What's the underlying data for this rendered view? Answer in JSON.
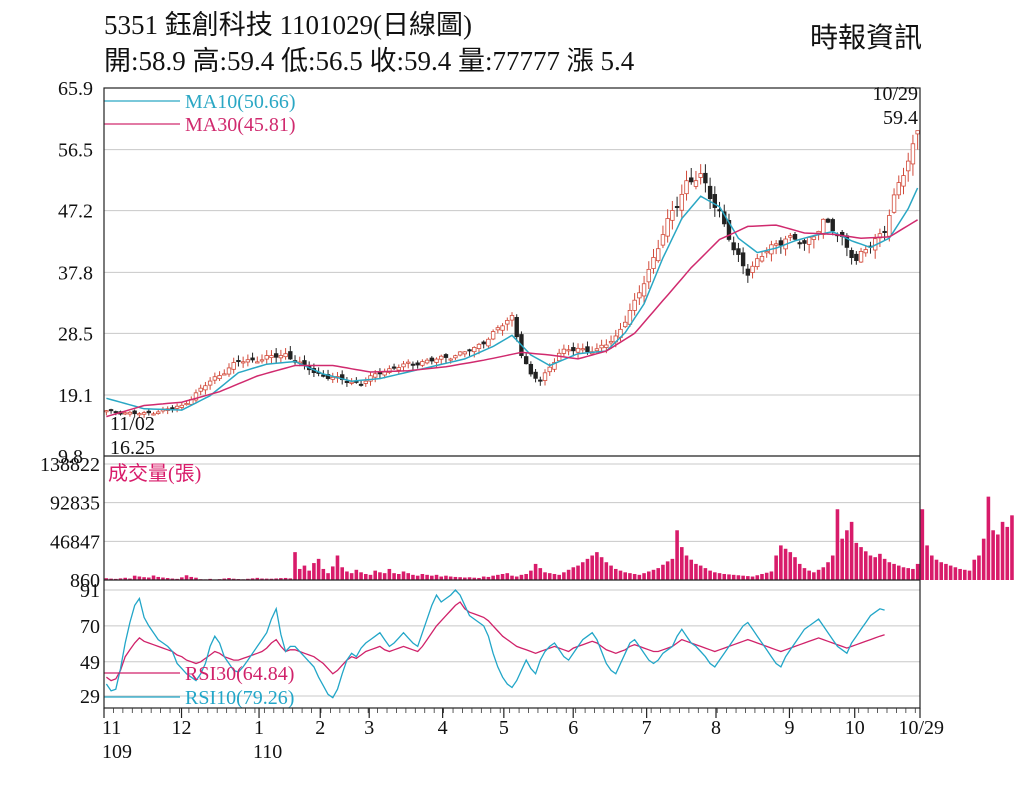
{
  "header": {
    "title": "5351  鈺創科技 1101029(日線圖)",
    "ohlc": "開:58.9 高:59.4 低:56.5 收:59.4 量:77777 漲 5.4",
    "source": "時報資訊"
  },
  "colors": {
    "ma10": "#2aa7c4",
    "ma30": "#d02a6e",
    "up_candle": "#d24a3a",
    "down_candle": "#222222",
    "volume": "#d81b6a",
    "rsi30": "#d0226a",
    "rsi10": "#22a6c8",
    "grid": "#c8c8c8"
  },
  "chart_data": [
    {
      "type": "candlestick",
      "name": "price",
      "ylim": [
        9.8,
        65.9
      ],
      "y_ticks": [
        "65.9",
        "56.5",
        "47.2",
        "37.8",
        "28.5",
        "19.1",
        "9.8"
      ],
      "legend": [
        "MA10(50.66)",
        "MA30(45.81)"
      ],
      "start_label": {
        "date": "11/02",
        "value": "16.25"
      },
      "end_label": {
        "date": "10/29",
        "value": "59.4"
      },
      "last_candle": {
        "open": 58.9,
        "high": 59.4,
        "low": 56.5,
        "close": 59.4
      },
      "price_path": [
        [
          0,
          16.6
        ],
        [
          8,
          16.2
        ],
        [
          16,
          17.4
        ],
        [
          22,
          21.2
        ],
        [
          28,
          24.2
        ],
        [
          33,
          24.6
        ],
        [
          38,
          25.3
        ],
        [
          42,
          23.4
        ],
        [
          46,
          22.0
        ],
        [
          50,
          21.4
        ],
        [
          54,
          20.8
        ],
        [
          58,
          22.6
        ],
        [
          64,
          23.8
        ],
        [
          70,
          24.5
        ],
        [
          74,
          25.2
        ],
        [
          78,
          26.1
        ],
        [
          82,
          28.5
        ],
        [
          86,
          31.0
        ],
        [
          88,
          25.5
        ],
        [
          90,
          22.0
        ],
        [
          92,
          21.3
        ],
        [
          96,
          25.5
        ],
        [
          100,
          26.2
        ],
        [
          104,
          25.8
        ],
        [
          108,
          28.0
        ],
        [
          112,
          33.0
        ],
        [
          116,
          40.0
        ],
        [
          120,
          47.0
        ],
        [
          123,
          51.5
        ],
        [
          126,
          52.2
        ],
        [
          130,
          47.0
        ],
        [
          133,
          41.0
        ],
        [
          136,
          38.0
        ],
        [
          140,
          41.0
        ],
        [
          144,
          43.2
        ],
        [
          148,
          42.0
        ],
        [
          152,
          45.5
        ],
        [
          156,
          43.0
        ],
        [
          159,
          39.5
        ],
        [
          162,
          42.0
        ],
        [
          165,
          44.5
        ],
        [
          168,
          51.0
        ],
        [
          170,
          55.0
        ],
        [
          172,
          59.4
        ]
      ],
      "ma10_path": [
        [
          0,
          18.6
        ],
        [
          8,
          17.0
        ],
        [
          16,
          16.8
        ],
        [
          22,
          19.0
        ],
        [
          28,
          22.5
        ],
        [
          34,
          23.8
        ],
        [
          40,
          24.2
        ],
        [
          46,
          22.3
        ],
        [
          52,
          21.2
        ],
        [
          58,
          21.6
        ],
        [
          64,
          22.6
        ],
        [
          70,
          23.6
        ],
        [
          76,
          24.6
        ],
        [
          82,
          26.5
        ],
        [
          86,
          28.2
        ],
        [
          90,
          25.2
        ],
        [
          94,
          23.6
        ],
        [
          100,
          25.4
        ],
        [
          106,
          25.8
        ],
        [
          110,
          28.6
        ],
        [
          114,
          33.0
        ],
        [
          118,
          40.0
        ],
        [
          122,
          46.0
        ],
        [
          126,
          49.4
        ],
        [
          130,
          47.8
        ],
        [
          134,
          43.0
        ],
        [
          138,
          40.8
        ],
        [
          142,
          41.5
        ],
        [
          146,
          42.6
        ],
        [
          150,
          43.4
        ],
        [
          154,
          44.0
        ],
        [
          158,
          42.6
        ],
        [
          162,
          41.6
        ],
        [
          166,
          43.0
        ],
        [
          170,
          47.5
        ],
        [
          172,
          50.66
        ]
      ],
      "ma30_path": [
        [
          0,
          15.8
        ],
        [
          8,
          17.5
        ],
        [
          16,
          18.0
        ],
        [
          24,
          19.6
        ],
        [
          32,
          22.0
        ],
        [
          40,
          23.6
        ],
        [
          48,
          23.6
        ],
        [
          56,
          22.6
        ],
        [
          64,
          22.8
        ],
        [
          72,
          23.4
        ],
        [
          80,
          24.4
        ],
        [
          88,
          25.6
        ],
        [
          94,
          25.2
        ],
        [
          100,
          24.6
        ],
        [
          106,
          25.8
        ],
        [
          112,
          28.5
        ],
        [
          118,
          33.5
        ],
        [
          124,
          38.5
        ],
        [
          130,
          42.8
        ],
        [
          136,
          44.8
        ],
        [
          142,
          45.0
        ],
        [
          148,
          43.8
        ],
        [
          154,
          43.6
        ],
        [
          160,
          43.0
        ],
        [
          166,
          43.2
        ],
        [
          172,
          45.81
        ]
      ]
    },
    {
      "type": "bar",
      "name": "volume",
      "title": "成交量(張)",
      "ylim": [
        860,
        138822
      ],
      "y_ticks": [
        "138822",
        "92835",
        "46847",
        "860"
      ],
      "values": [
        3000,
        2500,
        2200,
        2800,
        3500,
        2600,
        6000,
        5000,
        4200,
        3800,
        6200,
        4500,
        3800,
        3200,
        2600,
        2200,
        4000,
        6500,
        4500,
        3600,
        1800,
        1600,
        2200,
        1500,
        1900,
        2600,
        3200,
        2400,
        2000,
        1700,
        2300,
        2800,
        3400,
        2600,
        2500,
        2400,
        2700,
        3100,
        3300,
        2800,
        34000,
        14000,
        18000,
        12000,
        21000,
        26000,
        14000,
        9000,
        17000,
        30000,
        16000,
        11000,
        9000,
        13000,
        10000,
        8000,
        7000,
        12000,
        10000,
        9000,
        14000,
        9000,
        8000,
        11000,
        9000,
        7000,
        6000,
        8000,
        7000,
        6000,
        7000,
        5000,
        6000,
        5000,
        4500,
        4200,
        3800,
        4100,
        3600,
        3300,
        5000,
        4500,
        6000,
        7000,
        8000,
        9000,
        6000,
        5000,
        7000,
        8000,
        12000,
        20000,
        15000,
        10000,
        9000,
        8000,
        7000,
        10000,
        13000,
        16000,
        18000,
        22000,
        26000,
        30000,
        34000,
        28000,
        22000,
        18000,
        14000,
        12000,
        10000,
        9000,
        8000,
        7000,
        9000,
        11000,
        13000,
        15000,
        19000,
        23000,
        26000,
        60000,
        40000,
        30000,
        25000,
        20000,
        18000,
        15000,
        12000,
        10000,
        9000,
        8000,
        7500,
        7000,
        6500,
        6000,
        5500,
        5000,
        6500,
        8000,
        9500,
        11000,
        30000,
        42000,
        38000,
        34000,
        28000,
        20000,
        15000,
        12000,
        10000,
        13000,
        16000,
        22000,
        30000,
        85000,
        50000,
        60000,
        70000,
        45000,
        40000,
        35000,
        30000,
        28000,
        32000,
        26000,
        22000,
        20000,
        18000,
        16000,
        15000,
        14000,
        20000,
        85000,
        42000,
        30000,
        25000,
        22000,
        20000,
        18000,
        16000,
        14000,
        13000,
        12000,
        25000,
        30000,
        50000,
        100000,
        60000,
        55000,
        70000,
        64000,
        77777
      ]
    },
    {
      "type": "line",
      "name": "rsi",
      "ylim": [
        29,
        91
      ],
      "y_ticks": [
        "91",
        "70",
        "49",
        "29"
      ],
      "series": [
        {
          "name": "RSI30(64.84)",
          "values": [
            40,
            38,
            39,
            44,
            52,
            56,
            60,
            63,
            61,
            60,
            59,
            58,
            57,
            56,
            55,
            53,
            52,
            50,
            49,
            48,
            49,
            51,
            53,
            55,
            54,
            52,
            51,
            50,
            50,
            51,
            52,
            53,
            54,
            55,
            57,
            60,
            62,
            58,
            55,
            56,
            56,
            55,
            54,
            53,
            52,
            50,
            48,
            45,
            42,
            44,
            47,
            50,
            52,
            51,
            53,
            55,
            56,
            57,
            58,
            56,
            55,
            56,
            57,
            58,
            57,
            56,
            55,
            58,
            62,
            66,
            70,
            73,
            76,
            79,
            82,
            84,
            80,
            78,
            77,
            76,
            75,
            73,
            70,
            67,
            64,
            62,
            60,
            58,
            57,
            56,
            55,
            54,
            55,
            56,
            57,
            58,
            57,
            56,
            55,
            57,
            58,
            59,
            60,
            61,
            60,
            58,
            56,
            55,
            54,
            55,
            56,
            58,
            59,
            58,
            57,
            56,
            55,
            55,
            56,
            57,
            58,
            60,
            62,
            61,
            60,
            59,
            58,
            57,
            56,
            55,
            56,
            57,
            58,
            59,
            60,
            61,
            62,
            61,
            60,
            59,
            58,
            57,
            56,
            55,
            56,
            57,
            58,
            59,
            60,
            61,
            62,
            63,
            62,
            61,
            60,
            59,
            58,
            57,
            58,
            59,
            60,
            61,
            62,
            63,
            64,
            64.84
          ]
        },
        {
          "name": "RSI10(79.26)",
          "values": [
            36,
            32,
            33,
            45,
            60,
            72,
            82,
            86,
            75,
            70,
            66,
            62,
            60,
            58,
            55,
            48,
            45,
            42,
            40,
            38,
            42,
            48,
            58,
            64,
            60,
            52,
            48,
            44,
            43,
            46,
            50,
            54,
            58,
            62,
            66,
            74,
            80,
            65,
            55,
            58,
            58,
            55,
            52,
            49,
            46,
            40,
            35,
            30,
            28,
            33,
            42,
            50,
            54,
            52,
            57,
            60,
            62,
            64,
            66,
            62,
            58,
            60,
            63,
            66,
            63,
            60,
            58,
            66,
            74,
            82,
            88,
            84,
            86,
            88,
            91,
            88,
            82,
            76,
            74,
            72,
            70,
            64,
            54,
            46,
            40,
            36,
            34,
            38,
            44,
            50,
            45,
            42,
            50,
            55,
            58,
            60,
            56,
            52,
            50,
            54,
            58,
            62,
            64,
            66,
            62,
            55,
            48,
            44,
            42,
            48,
            54,
            60,
            62,
            58,
            54,
            50,
            48,
            50,
            54,
            56,
            58,
            64,
            68,
            64,
            60,
            58,
            55,
            52,
            48,
            46,
            50,
            54,
            58,
            62,
            66,
            70,
            72,
            68,
            64,
            60,
            56,
            52,
            48,
            46,
            52,
            56,
            60,
            64,
            68,
            70,
            72,
            74,
            70,
            66,
            62,
            58,
            56,
            54,
            60,
            64,
            68,
            72,
            76,
            78,
            80,
            79.26
          ]
        }
      ]
    }
  ],
  "x_axis": {
    "months": [
      {
        "label": "11",
        "sub": "109",
        "pos": 0
      },
      {
        "label": "12",
        "sub": "",
        "pos": 0.095
      },
      {
        "label": "1",
        "sub": "110",
        "pos": 0.19
      },
      {
        "label": "2",
        "sub": "",
        "pos": 0.265
      },
      {
        "label": "3",
        "sub": "",
        "pos": 0.325
      },
      {
        "label": "4",
        "sub": "",
        "pos": 0.415
      },
      {
        "label": "5",
        "sub": "",
        "pos": 0.49
      },
      {
        "label": "6",
        "sub": "",
        "pos": 0.575
      },
      {
        "label": "7",
        "sub": "",
        "pos": 0.665
      },
      {
        "label": "8",
        "sub": "",
        "pos": 0.75
      },
      {
        "label": "9",
        "sub": "",
        "pos": 0.84
      },
      {
        "label": "10",
        "sub": "",
        "pos": 0.92
      },
      {
        "label": "10/29",
        "sub": "",
        "pos": 1.0
      }
    ]
  }
}
